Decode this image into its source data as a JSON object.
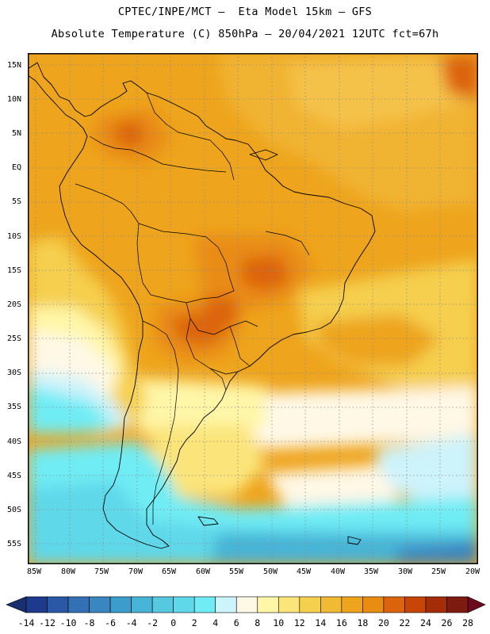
{
  "header": {
    "line1": "CPTEC/INPE/MCT –  Eta Model 15km – GFS",
    "line2": "Absolute Temperature (C) 850hPa – 20/04/2021 12UTC fct=67h"
  },
  "map": {
    "lat_labels": [
      "15N",
      "10N",
      "5N",
      "EQ",
      "5S",
      "10S",
      "15S",
      "20S",
      "25S",
      "30S",
      "35S",
      "40S",
      "45S",
      "50S",
      "55S"
    ],
    "lon_labels": [
      "85W",
      "80W",
      "75W",
      "70W",
      "65W",
      "60W",
      "55W",
      "50W",
      "45W",
      "40W",
      "35W",
      "30W",
      "25W",
      "20W"
    ]
  },
  "legend": {
    "values": [
      "-14",
      "-12",
      "-10",
      "-8",
      "-6",
      "-4",
      "-2",
      "0",
      "2",
      "4",
      "6",
      "8",
      "10",
      "12",
      "14",
      "16",
      "18",
      "20",
      "22",
      "24",
      "26",
      "28"
    ],
    "colors": [
      "#1d3a8c",
      "#2a58a6",
      "#3471b4",
      "#3a86c0",
      "#3c9ccb",
      "#47b4d7",
      "#56c8e0",
      "#5fd8ea",
      "#70ecf4",
      "#cdf3fb",
      "#fff8e6",
      "#fff6a8",
      "#fbe57a",
      "#f5cf4e",
      "#f1ba35",
      "#eea41c",
      "#e98c12",
      "#dc640c",
      "#c84508",
      "#a42d07",
      "#7e1b10"
    ],
    "low_color": "#1a2f6e",
    "high_color": "#6e0a1e"
  }
}
